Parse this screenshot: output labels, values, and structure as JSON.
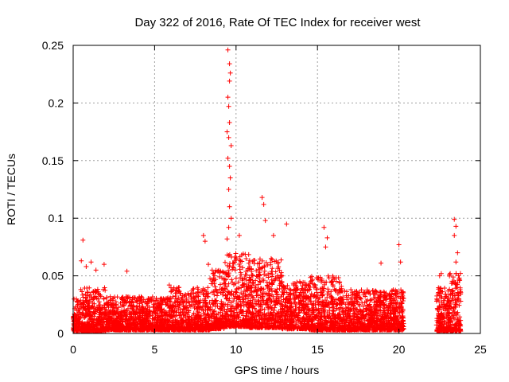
{
  "chart_data": {
    "type": "scatter",
    "title": "Day 322 of 2016, Rate Of TEC Index for receiver west",
    "xlabel": "GPS time / hours",
    "ylabel": "ROTI / TECUs",
    "xlim": [
      0,
      25
    ],
    "ylim": [
      0,
      0.25
    ],
    "xticks": [
      "0",
      "5",
      "10",
      "15",
      "20",
      "25"
    ],
    "yticks": [
      "0",
      "0.05",
      "0.1",
      "0.15",
      "0.2",
      "0.25"
    ],
    "grid": true,
    "marker": "+",
    "color": "#ff0000",
    "data_gap_hours": [
      20.3,
      22.3
    ],
    "series": [
      {
        "points": [
          [
            0.6,
            0.081
          ],
          [
            0.5,
            0.063
          ],
          [
            0.8,
            0.058
          ],
          [
            1.1,
            0.062
          ],
          [
            1.4,
            0.055
          ],
          [
            1.9,
            0.06
          ],
          [
            3.3,
            0.054
          ],
          [
            5.9,
            0.042
          ],
          [
            6.5,
            0.04
          ],
          [
            8.0,
            0.085
          ],
          [
            8.1,
            0.08
          ],
          [
            8.3,
            0.06
          ],
          [
            9.5,
            0.246
          ],
          [
            9.6,
            0.234
          ],
          [
            9.65,
            0.226
          ],
          [
            9.6,
            0.219
          ],
          [
            9.5,
            0.205
          ],
          [
            9.55,
            0.197
          ],
          [
            9.6,
            0.183
          ],
          [
            9.45,
            0.175
          ],
          [
            9.55,
            0.17
          ],
          [
            9.7,
            0.163
          ],
          [
            9.5,
            0.152
          ],
          [
            9.6,
            0.145
          ],
          [
            9.65,
            0.135
          ],
          [
            9.55,
            0.125
          ],
          [
            9.6,
            0.11
          ],
          [
            9.7,
            0.1
          ],
          [
            9.55,
            0.092
          ],
          [
            9.45,
            0.082
          ],
          [
            10.2,
            0.085
          ],
          [
            11.6,
            0.118
          ],
          [
            11.7,
            0.112
          ],
          [
            11.8,
            0.098
          ],
          [
            12.3,
            0.085
          ],
          [
            13.1,
            0.095
          ],
          [
            15.4,
            0.092
          ],
          [
            15.6,
            0.083
          ],
          [
            15.5,
            0.075
          ],
          [
            18.9,
            0.061
          ],
          [
            20.0,
            0.077
          ],
          [
            20.1,
            0.062
          ],
          [
            22.5,
            0.05
          ],
          [
            22.6,
            0.052
          ],
          [
            23.4,
            0.099
          ],
          [
            23.5,
            0.093
          ],
          [
            23.4,
            0.085
          ],
          [
            23.6,
            0.07
          ],
          [
            23.5,
            0.062
          ]
        ],
        "bands": [
          {
            "x": [
              0.0,
              0.4
            ],
            "y": [
              0.002,
              0.03
            ]
          },
          {
            "x": [
              0.4,
              2.0
            ],
            "y": [
              0.002,
              0.04
            ]
          },
          {
            "x": [
              2.0,
              6.0
            ],
            "y": [
              0.003,
              0.032
            ]
          },
          {
            "x": [
              6.0,
              8.4
            ],
            "y": [
              0.003,
              0.04
            ]
          },
          {
            "x": [
              8.4,
              9.3
            ],
            "y": [
              0.004,
              0.055
            ]
          },
          {
            "x": [
              9.3,
              10.8
            ],
            "y": [
              0.006,
              0.07
            ]
          },
          {
            "x": [
              10.8,
              12.8
            ],
            "y": [
              0.005,
              0.065
            ]
          },
          {
            "x": [
              12.8,
              14.5
            ],
            "y": [
              0.004,
              0.045
            ]
          },
          {
            "x": [
              14.5,
              16.5
            ],
            "y": [
              0.003,
              0.05
            ]
          },
          {
            "x": [
              16.5,
              20.3
            ],
            "y": [
              0.003,
              0.038
            ]
          },
          {
            "x": [
              22.3,
              23.1
            ],
            "y": [
              0.002,
              0.04
            ]
          },
          {
            "x": [
              23.1,
              23.8
            ],
            "y": [
              0.002,
              0.055
            ]
          }
        ]
      }
    ]
  }
}
